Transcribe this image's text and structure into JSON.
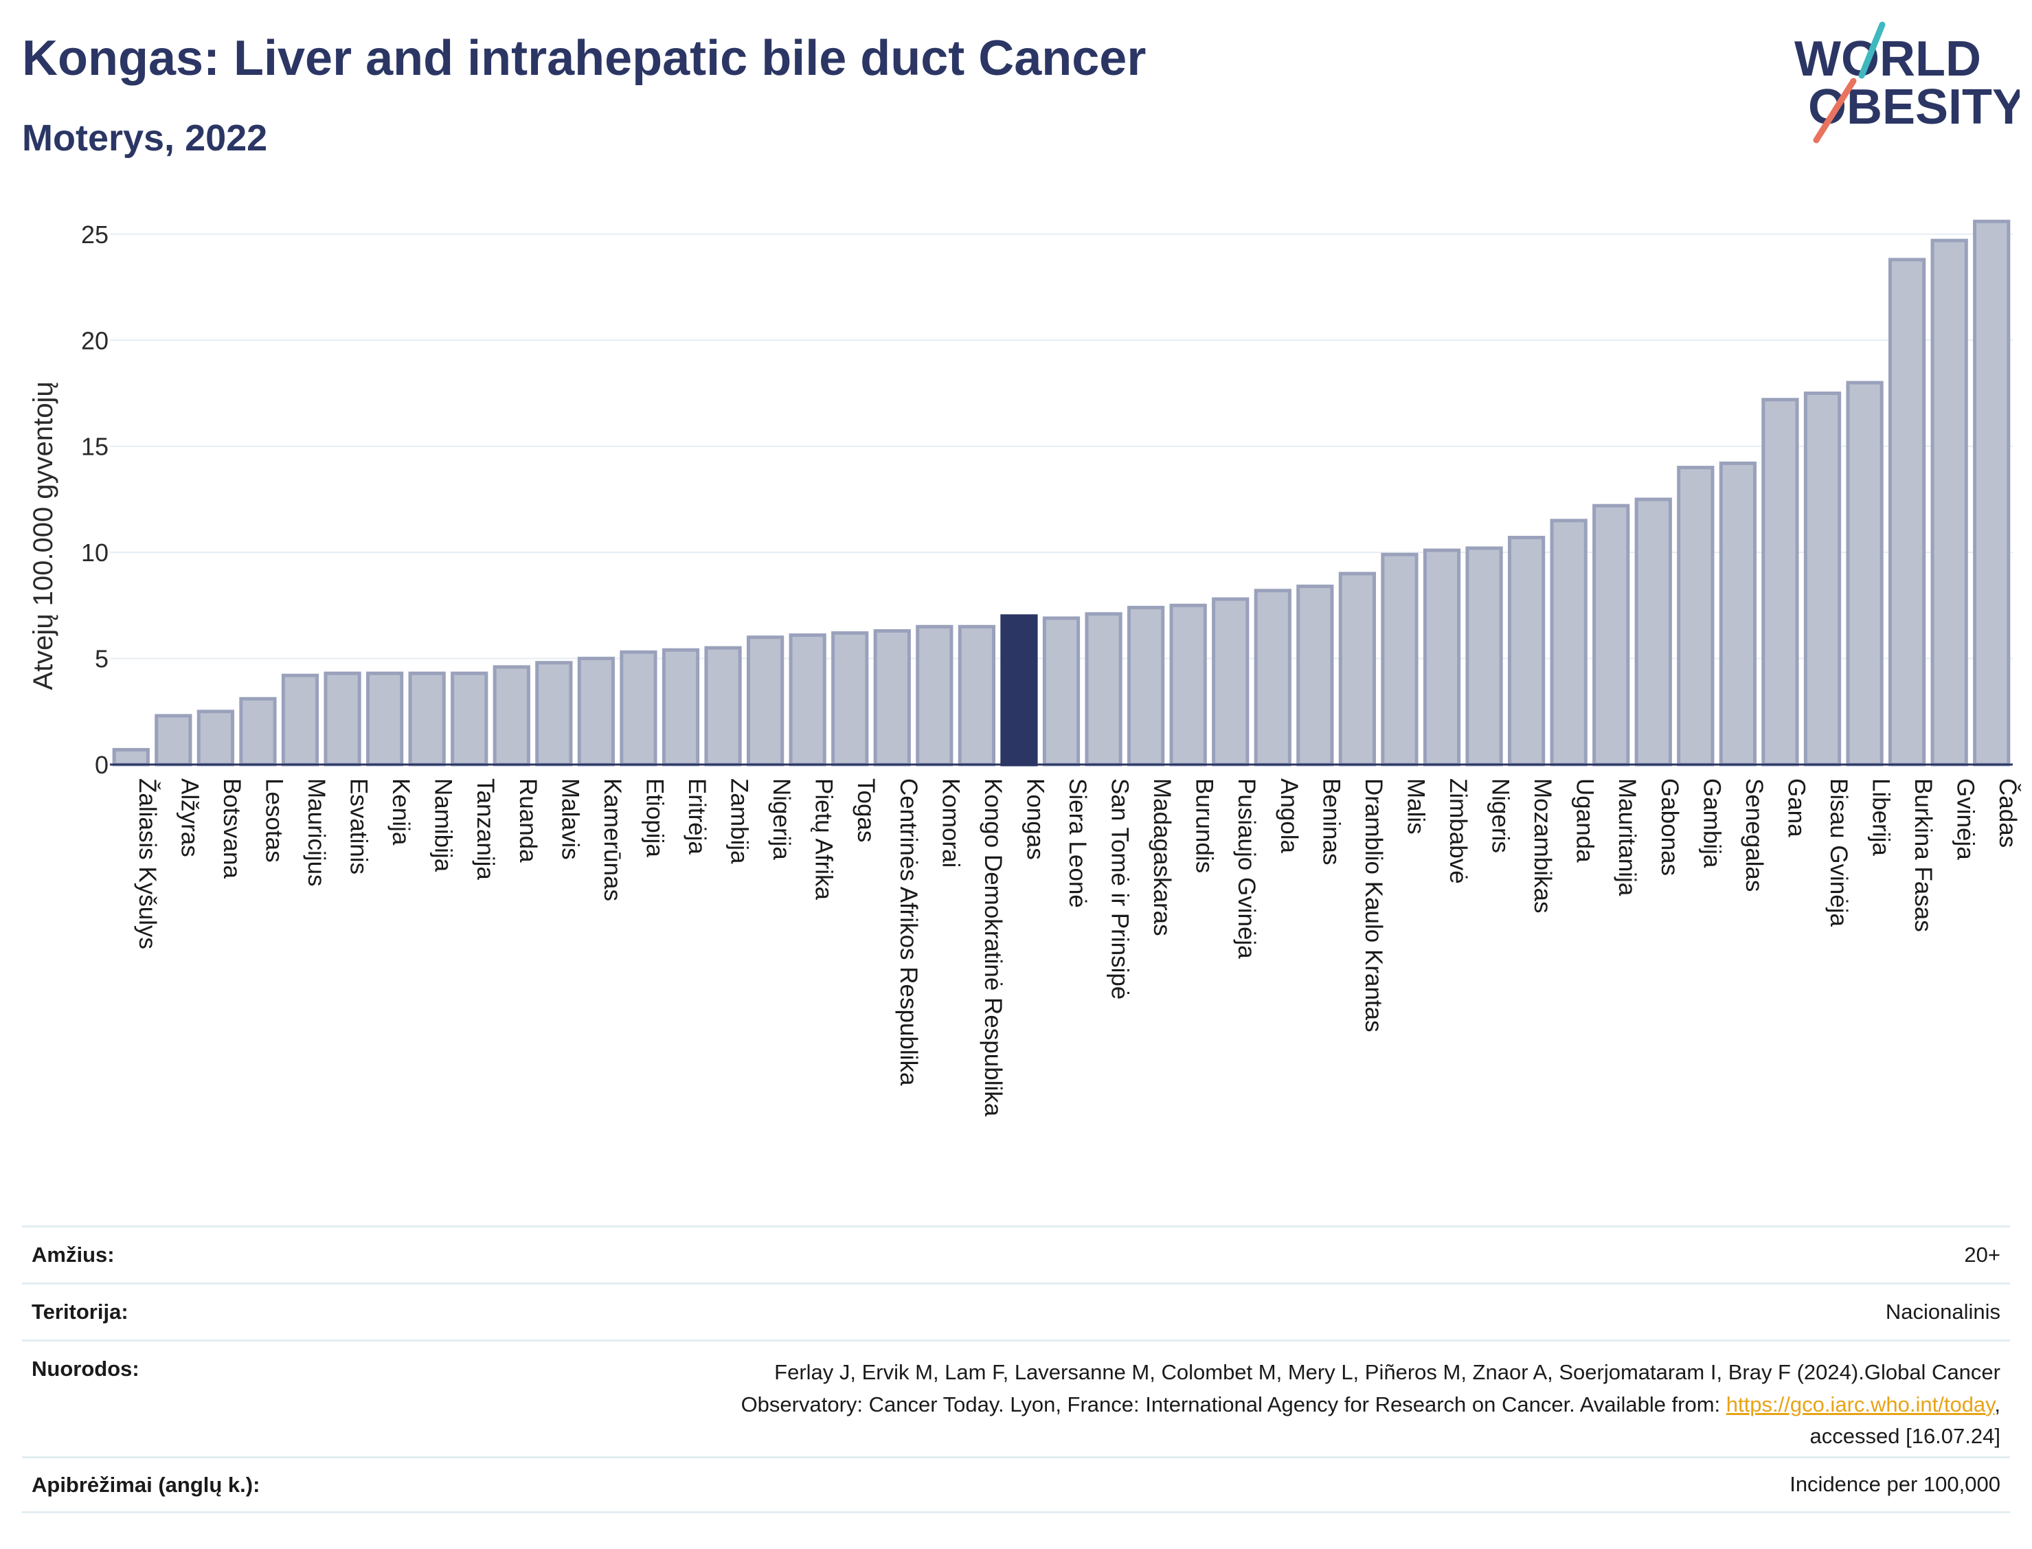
{
  "title": "Kongas: Liver and intrahepatic bile duct Cancer",
  "subtitle": "Moterys, 2022",
  "logo": {
    "line1": "WORLD",
    "line2": "OBESITY"
  },
  "colors": {
    "bar": "#bcc1d0",
    "bar_edge": "#9aa1bb",
    "highlight": "#2b3664",
    "grid": "#e6edf2"
  },
  "chart_data": {
    "type": "bar",
    "ylabel": "Atvejų 100.000 gyventojų",
    "ylim": [
      0,
      26
    ],
    "yticks": [
      0,
      5,
      10,
      15,
      20,
      25
    ],
    "highlight": "Kongas",
    "categories": [
      "Žaliasis Kyšulys",
      "Alžyras",
      "Botsvana",
      "Lesotas",
      "Mauricijus",
      "Esvatinis",
      "Kenija",
      "Namibija",
      "Tanzanija",
      "Ruanda",
      "Malavis",
      "Kamerūnas",
      "Etiopija",
      "Eritrėja",
      "Zambija",
      "Nigerija",
      "Pietų Afrika",
      "Togas",
      "Centrinės Afrikos Respublika",
      "Komorai",
      "Kongo Demokratinė Respublika",
      "Kongas",
      "Siera Leonė",
      "San Tomė ir Prinsipė",
      "Madagaskaras",
      "Burundis",
      "Pusiaujo Gvinėja",
      "Angola",
      "Beninas",
      "Dramblio Kaulo Krantas",
      "Malis",
      "Zimbabvė",
      "Nigeris",
      "Mozambikas",
      "Uganda",
      "Mauritanija",
      "Gabonas",
      "Gambija",
      "Senegalas",
      "Gana",
      "Bisau Gvinėja",
      "Liberija",
      "Burkina Fasas",
      "Gvinėja",
      "Čadas"
    ],
    "values": [
      0.7,
      2.3,
      2.5,
      3.1,
      4.2,
      4.3,
      4.3,
      4.3,
      4.3,
      4.6,
      4.8,
      5.0,
      5.3,
      5.4,
      5.5,
      6.0,
      6.1,
      6.2,
      6.3,
      6.5,
      6.5,
      7.0,
      6.9,
      7.1,
      7.4,
      7.5,
      7.8,
      8.2,
      8.4,
      9.0,
      9.9,
      10.1,
      10.2,
      10.7,
      11.5,
      12.2,
      12.5,
      14.0,
      14.2,
      17.2,
      17.5,
      18.0,
      23.8,
      24.7,
      25.6
    ]
  },
  "info": [
    {
      "key": "Amžius:",
      "value": "20+"
    },
    {
      "key": "Teritorija:",
      "value": "Nacionalinis"
    },
    {
      "key": "Nuorodos:",
      "value_line1": "Ferlay J, Ervik M, Lam F, Laversanne M, Colombet M, Mery L, Piñeros M, Znaor A, Soerjomataram I, Bray F (2024).Global Cancer",
      "value_line2_pre": "Observatory: Cancer Today. Lyon, France: International Agency for Research on Cancer. Available from: ",
      "link": "https://gco.iarc.who.int/today",
      "value_line2_post": ",",
      "value_line3": "accessed [16.07.24]"
    },
    {
      "key": "Apibrėžimai (anglų k.):",
      "value": "Incidence per 100,000"
    }
  ]
}
